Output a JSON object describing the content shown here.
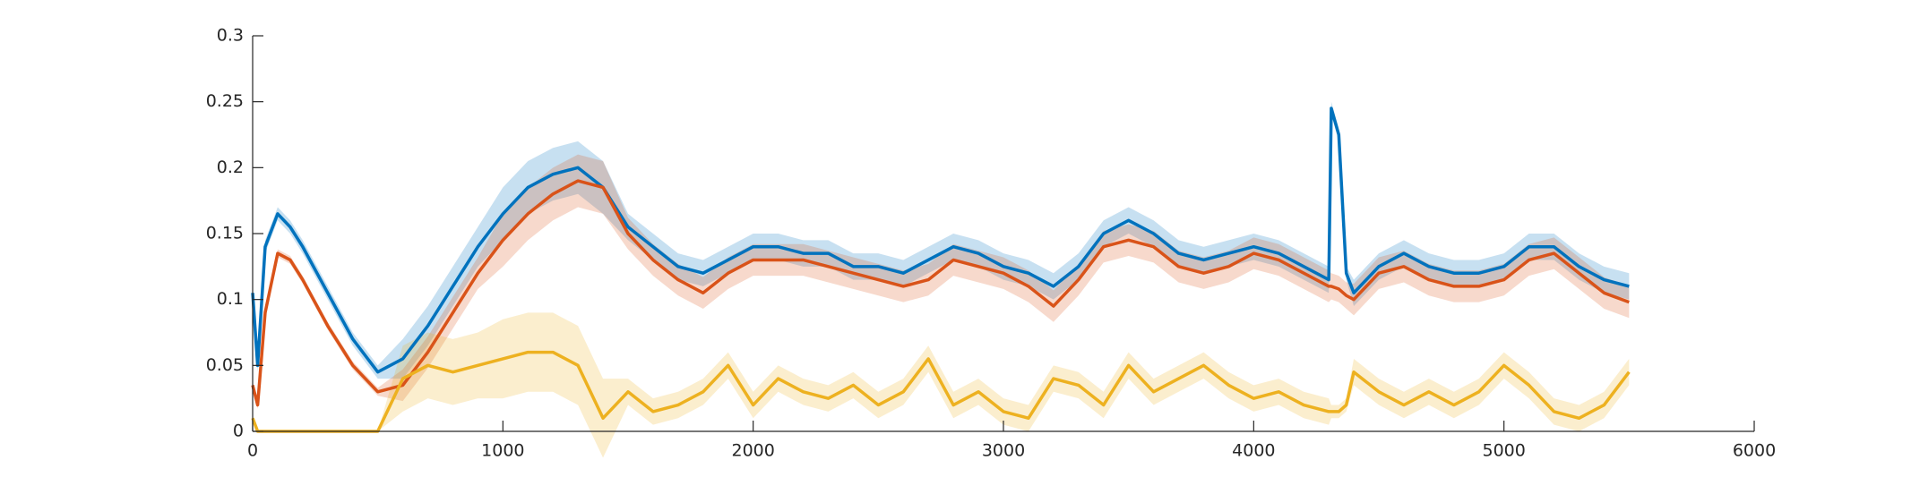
{
  "chart_data": {
    "type": "line",
    "x": [
      0,
      20,
      50,
      100,
      150,
      200,
      300,
      400,
      500,
      600,
      700,
      800,
      900,
      1000,
      1100,
      1200,
      1300,
      1400,
      1500,
      1600,
      1700,
      1800,
      1900,
      2000,
      2100,
      2200,
      2300,
      2400,
      2500,
      2600,
      2700,
      2800,
      2900,
      3000,
      3100,
      3200,
      3300,
      3400,
      3500,
      3600,
      3700,
      3800,
      3900,
      4000,
      4100,
      4200,
      4300,
      4310,
      4340,
      4370,
      4400,
      4500,
      4600,
      4700,
      4800,
      4900,
      5000,
      5100,
      5200,
      5300,
      5400,
      5500
    ],
    "series": [
      {
        "color": "#0072bd",
        "values": [
          0.105,
          0.05,
          0.14,
          0.165,
          0.155,
          0.14,
          0.105,
          0.07,
          0.045,
          0.055,
          0.08,
          0.11,
          0.14,
          0.165,
          0.185,
          0.195,
          0.2,
          0.185,
          0.155,
          0.14,
          0.125,
          0.12,
          0.13,
          0.14,
          0.14,
          0.135,
          0.135,
          0.125,
          0.125,
          0.12,
          0.13,
          0.14,
          0.135,
          0.125,
          0.12,
          0.11,
          0.125,
          0.15,
          0.16,
          0.15,
          0.135,
          0.13,
          0.135,
          0.14,
          0.135,
          0.125,
          0.115,
          0.245,
          0.225,
          0.12,
          0.105,
          0.125,
          0.135,
          0.125,
          0.12,
          0.12,
          0.125,
          0.14,
          0.14,
          0.125,
          0.115,
          0.11
        ],
        "errors": [
          0.005,
          0.005,
          0.005,
          0.005,
          0.005,
          0.005,
          0.005,
          0.005,
          0.005,
          0.015,
          0.015,
          0.015,
          0.015,
          0.02,
          0.02,
          0.02,
          0.02,
          0.02,
          0.01,
          0.01,
          0.01,
          0.01,
          0.01,
          0.01,
          0.01,
          0.01,
          0.01,
          0.01,
          0.01,
          0.01,
          0.01,
          0.01,
          0.01,
          0.01,
          0.01,
          0.01,
          0.01,
          0.01,
          0.01,
          0.01,
          0.01,
          0.01,
          0.01,
          0.01,
          0.01,
          0.01,
          0.01,
          0.005,
          0.005,
          0.005,
          0.01,
          0.01,
          0.01,
          0.01,
          0.01,
          0.01,
          0.01,
          0.01,
          0.01,
          0.01,
          0.01,
          0.01
        ]
      },
      {
        "color": "#d95319",
        "values": [
          0.035,
          0.02,
          0.09,
          0.135,
          0.13,
          0.115,
          0.08,
          0.05,
          0.03,
          0.035,
          0.06,
          0.09,
          0.12,
          0.145,
          0.165,
          0.18,
          0.19,
          0.185,
          0.15,
          0.13,
          0.115,
          0.105,
          0.12,
          0.13,
          0.13,
          0.13,
          0.125,
          0.12,
          0.115,
          0.11,
          0.115,
          0.13,
          0.125,
          0.12,
          0.11,
          0.095,
          0.115,
          0.14,
          0.145,
          0.14,
          0.125,
          0.12,
          0.125,
          0.135,
          0.13,
          0.12,
          0.11,
          0.11,
          0.108,
          0.103,
          0.1,
          0.12,
          0.125,
          0.115,
          0.11,
          0.11,
          0.115,
          0.13,
          0.135,
          0.12,
          0.105,
          0.098
        ],
        "errors": [
          0.003,
          0.003,
          0.003,
          0.003,
          0.003,
          0.003,
          0.003,
          0.003,
          0.003,
          0.012,
          0.012,
          0.012,
          0.012,
          0.02,
          0.02,
          0.02,
          0.02,
          0.02,
          0.012,
          0.012,
          0.012,
          0.012,
          0.012,
          0.012,
          0.012,
          0.012,
          0.012,
          0.012,
          0.012,
          0.012,
          0.012,
          0.012,
          0.012,
          0.012,
          0.012,
          0.012,
          0.012,
          0.012,
          0.012,
          0.012,
          0.012,
          0.012,
          0.012,
          0.012,
          0.012,
          0.012,
          0.012,
          0.01,
          0.01,
          0.01,
          0.012,
          0.012,
          0.012,
          0.012,
          0.012,
          0.012,
          0.012,
          0.012,
          0.012,
          0.012,
          0.012,
          0.012
        ]
      },
      {
        "color": "#edb120",
        "values": [
          0.01,
          0,
          0,
          0,
          0,
          0,
          0,
          0,
          0,
          0.04,
          0.05,
          0.045,
          0.05,
          0.055,
          0.06,
          0.06,
          0.05,
          0.01,
          0.03,
          0.015,
          0.02,
          0.03,
          0.05,
          0.02,
          0.04,
          0.03,
          0.025,
          0.035,
          0.02,
          0.03,
          0.055,
          0.02,
          0.03,
          0.015,
          0.01,
          0.04,
          0.035,
          0.02,
          0.05,
          0.03,
          0.04,
          0.05,
          0.035,
          0.025,
          0.03,
          0.02,
          0.015,
          0.015,
          0.015,
          0.02,
          0.045,
          0.03,
          0.02,
          0.03,
          0.02,
          0.03,
          0.05,
          0.035,
          0.015,
          0.01,
          0.02,
          0.045
        ],
        "errors": [
          0,
          0,
          0,
          0,
          0,
          0,
          0,
          0,
          0,
          0.025,
          0.025,
          0.025,
          0.025,
          0.03,
          0.03,
          0.03,
          0.03,
          0.03,
          0.01,
          0.01,
          0.01,
          0.01,
          0.01,
          0.01,
          0.01,
          0.01,
          0.01,
          0.01,
          0.01,
          0.01,
          0.01,
          0.01,
          0.01,
          0.01,
          0.01,
          0.01,
          0.01,
          0.01,
          0.01,
          0.01,
          0.01,
          0.01,
          0.01,
          0.01,
          0.01,
          0.01,
          0.01,
          0.005,
          0.005,
          0.005,
          0.01,
          0.01,
          0.01,
          0.01,
          0.01,
          0.01,
          0.01,
          0.01,
          0.01,
          0.01,
          0.01,
          0.01
        ]
      }
    ],
    "xlim": [
      0,
      6000
    ],
    "xticks": [
      0,
      1000,
      2000,
      3000,
      4000,
      5000,
      6000
    ],
    "ylim": [
      0,
      0.3
    ],
    "yticks": [
      0,
      0.05,
      0.1,
      0.15,
      0.2,
      0.25,
      0.3
    ]
  }
}
